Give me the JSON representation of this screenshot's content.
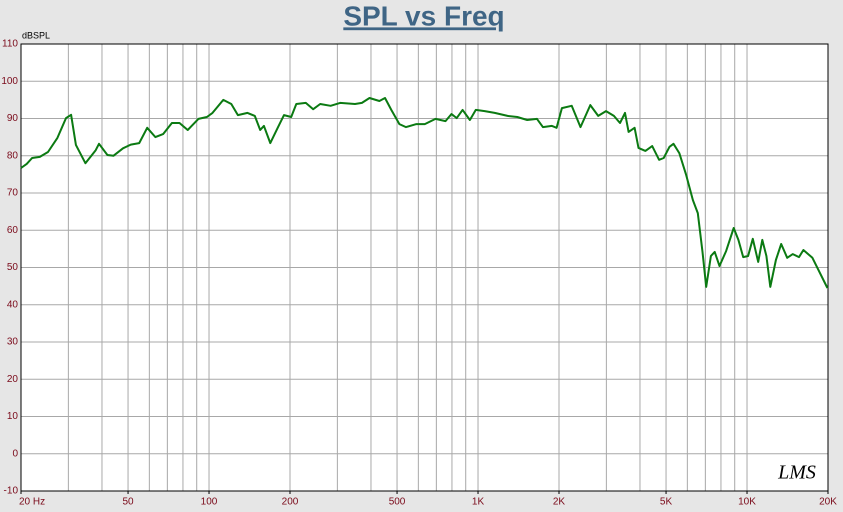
{
  "chart_data": {
    "type": "line",
    "title": "SPL vs Freq",
    "ylabel": "dBSPL",
    "logo": "LMS",
    "xscale": "log",
    "grid": true,
    "xlim": [
      20,
      20000
    ],
    "ylim": [
      -10,
      110
    ],
    "xticks": [
      {
        "value": 20,
        "label": "20 Hz"
      },
      50,
      100,
      200,
      500,
      {
        "value": 1000,
        "label": "1K"
      },
      {
        "value": 2000,
        "label": "2K"
      },
      {
        "value": 5000,
        "label": "5K"
      },
      {
        "value": 10000,
        "label": "10K"
      },
      {
        "value": 20000,
        "label": "20K"
      }
    ],
    "xgrid": [
      30,
      40,
      50,
      60,
      70,
      80,
      90,
      100,
      200,
      300,
      400,
      500,
      600,
      700,
      800,
      900,
      1000,
      2000,
      3000,
      4000,
      5000,
      6000,
      7000,
      8000,
      9000,
      10000
    ],
    "yticks": [
      -10,
      0,
      10,
      20,
      30,
      40,
      50,
      60,
      70,
      80,
      90,
      100,
      110
    ],
    "x": [
      20,
      21,
      22,
      23.5,
      25.2,
      27.3,
      29.4,
      30.7,
      32,
      34.7,
      37.9,
      39,
      41.9,
      44.1,
      47.9,
      51.2,
      55,
      58.9,
      63.2,
      67.5,
      72.8,
      77.7,
      83.3,
      91.3,
      98.2,
      103,
      113,
      121,
      128,
      139,
      148,
      155,
      160,
      169,
      180,
      190,
      202,
      211,
      229,
      244,
      259,
      283,
      307,
      349,
      370,
      395,
      430,
      451,
      476,
      510,
      540,
      590,
      634,
      695,
      757,
      797,
      833,
      876,
      933,
      981,
      1059,
      1153,
      1288,
      1400,
      1523,
      1656,
      1742,
      1882,
      1960,
      2050,
      2230,
      2404,
      2615,
      2797,
      2990,
      3200,
      3370,
      3520,
      3630,
      3820,
      3950,
      4190,
      4440,
      4710,
      4900,
      5150,
      5330,
      5600,
      5940,
      6290,
      6560,
      6830,
      7050,
      7340,
      7580,
      7900,
      8360,
      8920,
      9290,
      9680,
      10090,
      10510,
      11000,
      11400,
      11800,
      12200,
      12800,
      13400,
      14100,
      14800,
      15600,
      16200,
      17500,
      19900
    ],
    "series": [
      {
        "color": "#0b7a12",
        "values": [
          76.7,
          77.8,
          79.4,
          79.7,
          81,
          84.8,
          90.1,
          91,
          82.9,
          78,
          81.5,
          83.2,
          80.2,
          80,
          82,
          83,
          83.4,
          87.5,
          85,
          85.8,
          88.8,
          88.8,
          86.9,
          89.9,
          90.4,
          91.5,
          95,
          93.9,
          90.9,
          91.5,
          90.7,
          86.9,
          88,
          83.4,
          87.5,
          90.9,
          90.4,
          93.9,
          94.2,
          92.5,
          93.9,
          93.4,
          94.2,
          93.9,
          94.2,
          95.5,
          94.7,
          95.5,
          92.3,
          88.5,
          87.7,
          88.5,
          88.5,
          89.9,
          89.3,
          91.2,
          90.1,
          92.3,
          89.6,
          92.3,
          92,
          91.5,
          90.7,
          90.4,
          89.6,
          89.9,
          87.7,
          88,
          87.5,
          92.8,
          93.4,
          87.7,
          93.6,
          90.7,
          92,
          90.7,
          88.8,
          91.5,
          86.4,
          87.5,
          82.1,
          81.3,
          82.6,
          78.9,
          79.4,
          82.4,
          83.2,
          80.7,
          74.8,
          68.1,
          64.6,
          54.2,
          44.8,
          53.1,
          54.2,
          50.4,
          54.4,
          60.6,
          57.4,
          52.8,
          53.1,
          57.7,
          51.5,
          57.4,
          53.1,
          44.8,
          52,
          56.3,
          52.6,
          53.6,
          52.8,
          54.7,
          52.6,
          44.5
        ]
      }
    ]
  }
}
